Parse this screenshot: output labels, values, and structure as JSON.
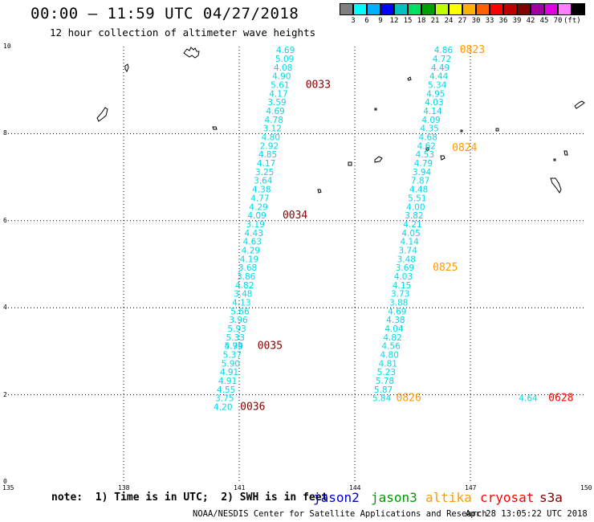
{
  "title": "00:00 — 11:59 UTC 04/27/2018",
  "subtitle": "12 hour collection of altimeter wave heights",
  "colorbar": {
    "colors": [
      "#808080",
      "#00ffff",
      "#00b0ff",
      "#0000ff",
      "#00c0c0",
      "#00e060",
      "#00a000",
      "#c0ff00",
      "#ffff00",
      "#ffb000",
      "#ff6000",
      "#ff0000",
      "#c00000",
      "#800000",
      "#a000a0",
      "#e000e0",
      "#ff80ff",
      "#000000"
    ],
    "labels": [
      "3",
      "6",
      "9",
      "12",
      "15",
      "18",
      "21",
      "24",
      "27",
      "30",
      "33",
      "36",
      "39",
      "42",
      "45",
      "70",
      "(ft)"
    ]
  },
  "axes": {
    "x_ticks": [
      "135",
      "138",
      "141",
      "144",
      "147",
      "150"
    ],
    "y_ticks": [
      "0",
      "2",
      "4",
      "6",
      "8",
      "10"
    ]
  },
  "passes": [
    {
      "color": "#00d8e8",
      "points": [
        {
          "lon": 142.2,
          "lat": 9.85,
          "v": "4.69"
        },
        {
          "lon": 142.18,
          "lat": 9.65,
          "v": "5.09"
        },
        {
          "lon": 142.14,
          "lat": 9.45,
          "v": "4.08"
        },
        {
          "lon": 142.1,
          "lat": 9.25,
          "v": "4.90"
        },
        {
          "lon": 142.06,
          "lat": 9.05,
          "v": "5.61"
        },
        {
          "lon": 142.02,
          "lat": 8.85,
          "v": "4.17"
        },
        {
          "lon": 141.98,
          "lat": 8.65,
          "v": "3.59"
        },
        {
          "lon": 141.94,
          "lat": 8.45,
          "v": "4.69"
        },
        {
          "lon": 141.9,
          "lat": 8.25,
          "v": "4.78"
        },
        {
          "lon": 141.86,
          "lat": 8.05,
          "v": "3.12"
        },
        {
          "lon": 141.82,
          "lat": 7.85,
          "v": "4.80"
        },
        {
          "lon": 141.78,
          "lat": 7.65,
          "v": "2.92"
        },
        {
          "lon": 141.74,
          "lat": 7.45,
          "v": "4.85"
        },
        {
          "lon": 141.7,
          "lat": 7.25,
          "v": "4.17"
        },
        {
          "lon": 141.66,
          "lat": 7.05,
          "v": "3.25"
        },
        {
          "lon": 141.62,
          "lat": 6.85,
          "v": "3.64"
        },
        {
          "lon": 141.58,
          "lat": 6.65,
          "v": "4.38"
        },
        {
          "lon": 141.54,
          "lat": 6.45,
          "v": "4.77"
        },
        {
          "lon": 141.5,
          "lat": 6.25,
          "v": "4.29"
        },
        {
          "lon": 141.46,
          "lat": 6.05,
          "v": "4.09"
        },
        {
          "lon": 141.42,
          "lat": 5.85,
          "v": "3.19"
        },
        {
          "lon": 141.38,
          "lat": 5.65,
          "v": "4.43"
        },
        {
          "lon": 141.34,
          "lat": 5.45,
          "v": "4.63"
        },
        {
          "lon": 141.3,
          "lat": 5.25,
          "v": "4.29"
        },
        {
          "lon": 141.26,
          "lat": 5.05,
          "v": "4.19"
        },
        {
          "lon": 141.22,
          "lat": 4.85,
          "v": "3.68"
        },
        {
          "lon": 141.18,
          "lat": 4.65,
          "v": "3.86"
        },
        {
          "lon": 141.14,
          "lat": 4.45,
          "v": "4.82"
        },
        {
          "lon": 141.1,
          "lat": 4.25,
          "v": "3.48"
        },
        {
          "lon": 141.06,
          "lat": 4.05,
          "v": "4.13"
        },
        {
          "lon": 141.02,
          "lat": 3.85,
          "v": "5.66"
        },
        {
          "lon": 140.98,
          "lat": 3.65,
          "v": "3.96"
        },
        {
          "lon": 140.94,
          "lat": 3.45,
          "v": "5.93"
        },
        {
          "lon": 140.9,
          "lat": 3.25,
          "v": "5.33"
        },
        {
          "lon": 140.86,
          "lat": 3.05,
          "v": "5.79"
        },
        {
          "lon": 140.86,
          "lat": 3.05,
          "v": "4.94"
        },
        {
          "lon": 140.82,
          "lat": 2.85,
          "v": "5.37"
        },
        {
          "lon": 140.78,
          "lat": 2.65,
          "v": "5.90"
        },
        {
          "lon": 140.74,
          "lat": 2.45,
          "v": "4.91"
        },
        {
          "lon": 140.7,
          "lat": 2.25,
          "v": "4.91"
        },
        {
          "lon": 140.66,
          "lat": 2.05,
          "v": "4.55"
        },
        {
          "lon": 140.62,
          "lat": 1.85,
          "v": "3.75"
        },
        {
          "lon": 140.58,
          "lat": 1.65,
          "v": "4.20"
        }
      ]
    },
    {
      "color": "#00d8e8",
      "points": [
        {
          "lon": 146.3,
          "lat": 9.85,
          "v": "4.86"
        },
        {
          "lon": 146.26,
          "lat": 9.65,
          "v": "4.72"
        },
        {
          "lon": 146.22,
          "lat": 9.45,
          "v": "4.49"
        },
        {
          "lon": 146.18,
          "lat": 9.25,
          "v": "4.44"
        },
        {
          "lon": 146.14,
          "lat": 9.05,
          "v": "5.34"
        },
        {
          "lon": 146.1,
          "lat": 8.85,
          "v": "4.95"
        },
        {
          "lon": 146.06,
          "lat": 8.65,
          "v": "4.03"
        },
        {
          "lon": 146.02,
          "lat": 8.45,
          "v": "4.14"
        },
        {
          "lon": 145.98,
          "lat": 8.25,
          "v": "4.09"
        },
        {
          "lon": 145.94,
          "lat": 8.05,
          "v": "4.35"
        },
        {
          "lon": 145.9,
          "lat": 7.85,
          "v": "4.68"
        },
        {
          "lon": 145.86,
          "lat": 7.65,
          "v": "4.62"
        },
        {
          "lon": 145.82,
          "lat": 7.45,
          "v": "4.53"
        },
        {
          "lon": 145.78,
          "lat": 7.25,
          "v": "4.79"
        },
        {
          "lon": 145.74,
          "lat": 7.05,
          "v": "3.94"
        },
        {
          "lon": 145.7,
          "lat": 6.85,
          "v": "7.87"
        },
        {
          "lon": 145.66,
          "lat": 6.65,
          "v": "4.48"
        },
        {
          "lon": 145.62,
          "lat": 6.45,
          "v": "5.51"
        },
        {
          "lon": 145.58,
          "lat": 6.25,
          "v": "4.00"
        },
        {
          "lon": 145.54,
          "lat": 6.05,
          "v": "3.82"
        },
        {
          "lon": 145.5,
          "lat": 5.85,
          "v": "4.21"
        },
        {
          "lon": 145.46,
          "lat": 5.65,
          "v": "4.05"
        },
        {
          "lon": 145.42,
          "lat": 5.45,
          "v": "4.14"
        },
        {
          "lon": 145.38,
          "lat": 5.25,
          "v": "3.74"
        },
        {
          "lon": 145.34,
          "lat": 5.05,
          "v": "3.48"
        },
        {
          "lon": 145.3,
          "lat": 4.85,
          "v": "3.69"
        },
        {
          "lon": 145.26,
          "lat": 4.65,
          "v": "4.03"
        },
        {
          "lon": 145.22,
          "lat": 4.45,
          "v": "4.15"
        },
        {
          "lon": 145.18,
          "lat": 4.25,
          "v": "3.73"
        },
        {
          "lon": 145.14,
          "lat": 4.05,
          "v": "3.88"
        },
        {
          "lon": 145.1,
          "lat": 3.85,
          "v": "4.69"
        },
        {
          "lon": 145.06,
          "lat": 3.65,
          "v": "4.38"
        },
        {
          "lon": 145.02,
          "lat": 3.45,
          "v": "4.04"
        },
        {
          "lon": 144.98,
          "lat": 3.25,
          "v": "4.82"
        },
        {
          "lon": 144.94,
          "lat": 3.05,
          "v": "4.56"
        },
        {
          "lon": 144.9,
          "lat": 2.85,
          "v": "4.80"
        },
        {
          "lon": 144.86,
          "lat": 2.65,
          "v": "4.81"
        },
        {
          "lon": 144.82,
          "lat": 2.45,
          "v": "5.23"
        },
        {
          "lon": 144.78,
          "lat": 2.25,
          "v": "5.78"
        },
        {
          "lon": 144.74,
          "lat": 2.05,
          "v": "5.87"
        },
        {
          "lon": 144.7,
          "lat": 1.85,
          "v": "5.84"
        }
      ]
    },
    {
      "color": "#00d8e8",
      "points": [
        {
          "lon": 148.5,
          "lat": 1.85,
          "v": "4.64"
        }
      ]
    }
  ],
  "time_labels": [
    {
      "t": "0823",
      "color": "#ff9900",
      "lon": 147.05,
      "lat": 9.85
    },
    {
      "t": "0033",
      "color": "#800000",
      "lon": 143.05,
      "lat": 9.05
    },
    {
      "t": "0824",
      "color": "#ff9900",
      "lon": 146.85,
      "lat": 7.6
    },
    {
      "t": "0034",
      "color": "#800000",
      "lon": 142.45,
      "lat": 6.05
    },
    {
      "t": "0825",
      "color": "#ff9900",
      "lon": 146.35,
      "lat": 4.85
    },
    {
      "t": "0035",
      "color": "#800000",
      "lon": 141.8,
      "lat": 3.05
    },
    {
      "t": "0036",
      "color": "#800000",
      "lon": 141.35,
      "lat": 1.65
    },
    {
      "t": "0826",
      "color": "#ff9900",
      "lon": 145.4,
      "lat": 1.85
    },
    {
      "t": "0628",
      "color": "#ff0000",
      "lon": 149.35,
      "lat": 1.85
    }
  ],
  "note": "note:  1) Time is in UTC;  2) SWH is in feet",
  "legend_sats": [
    {
      "name": "jason2",
      "color": "#0000cc"
    },
    {
      "name": "jason3",
      "color": "#009900"
    },
    {
      "name": "altika",
      "color": "#ff9900"
    },
    {
      "name": "cryosat",
      "color": "#ff0000"
    },
    {
      "name": "s3a",
      "color": "#800000"
    }
  ],
  "footer_left": "NOAA/NESDIS Center for Satellite Applications and Research",
  "footer_right": "Apr 28 13:05:22 UTC 2018"
}
